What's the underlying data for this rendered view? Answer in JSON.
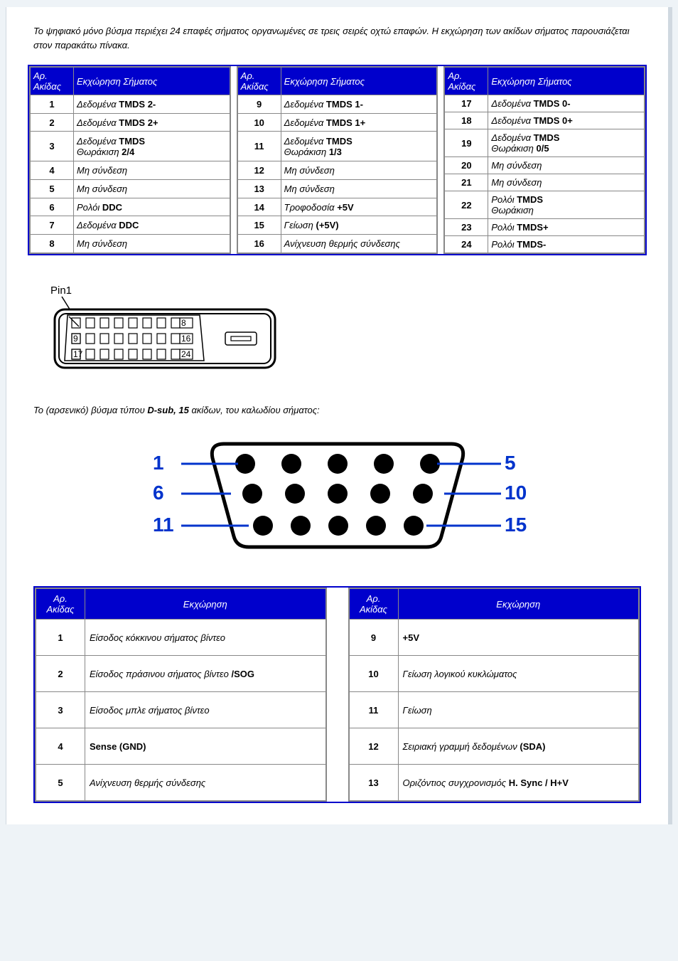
{
  "intro": "Το ψηφιακό μόνο βύσμα περιέχει 24 επαφές σήματος οργανωμένες σε τρεις σειρές οχτώ επαφών. Η εκχώρηση των ακίδων σήματος παρουσιάζεται στον παρακάτω πίνακα.",
  "headers": {
    "pin": "Αρ. Ακίδας",
    "signal": "Εκχώρηση Σήματος",
    "assign": "Εκχώρηση"
  },
  "dvi": [
    [
      {
        "n": "1",
        "sig": "Δεδομένα <b>TMDS 2-</b>"
      },
      {
        "n": "2",
        "sig": "Δεδομένα <b>TMDS 2+</b>"
      },
      {
        "n": "3",
        "sig": "Δεδομένα <b>TMDS</b><br>Θωράκιση <b>2/4</b>"
      },
      {
        "n": "4",
        "sig": "Μη σύνδεση"
      },
      {
        "n": "5",
        "sig": "Μη σύνδεση"
      },
      {
        "n": "6",
        "sig": "Ρολόι <b>DDC</b>"
      },
      {
        "n": "7",
        "sig": "Δεδομένα <b>DDC</b>"
      },
      {
        "n": "8",
        "sig": "Μη σύνδεση"
      }
    ],
    [
      {
        "n": "9",
        "sig": "Δεδομένα <b>TMDS 1-</b>"
      },
      {
        "n": "10",
        "sig": "Δεδομένα <b>TMDS 1+</b>"
      },
      {
        "n": "11",
        "sig": "Δεδομένα <b>TMDS</b><br>Θωράκιση <b>1/3</b>"
      },
      {
        "n": "12",
        "sig": "Μη σύνδεση"
      },
      {
        "n": "13",
        "sig": "Μη σύνδεση"
      },
      {
        "n": "14",
        "sig": "Τροφοδοσία <b>+5V</b>"
      },
      {
        "n": "15",
        "sig": "Γείωση <b>(+5V)</b>"
      },
      {
        "n": "16",
        "sig": "Ανίχνευση θερμής σύνδεσης"
      }
    ],
    [
      {
        "n": "17",
        "sig": "Δεδομένα <b>TMDS 0-</b>"
      },
      {
        "n": "18",
        "sig": "Δεδομένα <b>TMDS 0+</b>"
      },
      {
        "n": "19",
        "sig": "Δεδομένα <b>TMDS</b><br>Θωράκιση <b>0/5</b>"
      },
      {
        "n": "20",
        "sig": "Μη σύνδεση"
      },
      {
        "n": "21",
        "sig": "Μη σύνδεση"
      },
      {
        "n": "22",
        "sig": "Ρολόι <b>TMDS</b><br>Θωράκιση"
      },
      {
        "n": "23",
        "sig": "Ρολόι <b>TMDS+</b>"
      },
      {
        "n": "24",
        "sig": "Ρολόι <b>TMDS-</b>"
      }
    ]
  ],
  "dvi_diagram": {
    "pin1_label": "Pin1",
    "row_right_labels": [
      "8",
      "16",
      "24"
    ],
    "row_left_labels": [
      "",
      "9",
      "17"
    ]
  },
  "dsub_text": "Το (αρσενικό) βύσμα τύπου <b>D-sub, 15</b> ακίδων, του καλωδίου σήματος:",
  "dsub_diagram_numbers": {
    "left": [
      "1",
      "6",
      "11"
    ],
    "right": [
      "5",
      "10",
      "15"
    ]
  },
  "dsub": [
    [
      {
        "n": "1",
        "sig": "Είσοδος κόκκινου σήματος βίντεο"
      },
      {
        "n": "2",
        "sig": "Είσοδος πράσινου σήματος βίντεο <b>/SOG</b>"
      },
      {
        "n": "3",
        "sig": "Είσοδος μπλε σήματος βίντεο"
      },
      {
        "n": "4",
        "sig": "<b>Sense (GND)</b>"
      },
      {
        "n": "5",
        "sig": "Ανίχνευση θερμής σύνδεσης"
      }
    ],
    [
      {
        "n": "9",
        "sig": "<b>+5V</b>"
      },
      {
        "n": "10",
        "sig": "Γείωση λογικού κυκλώματος"
      },
      {
        "n": "11",
        "sig": "Γείωση"
      },
      {
        "n": "12",
        "sig": "Σειριακή γραμμή δεδομένων <b>(SDA)</b>"
      },
      {
        "n": "13",
        "sig": "Οριζόντιος συγχρονισμός <b>H. Sync / H+V</b>"
      }
    ]
  ],
  "style": {
    "header_bg": "#0000cc",
    "header_fg": "#ffffff",
    "border": "#888888",
    "outer_border": "#0000cc",
    "number_color": "#0033cc",
    "content_bg": "#ffffff",
    "page_bg": "#eef3f7"
  }
}
